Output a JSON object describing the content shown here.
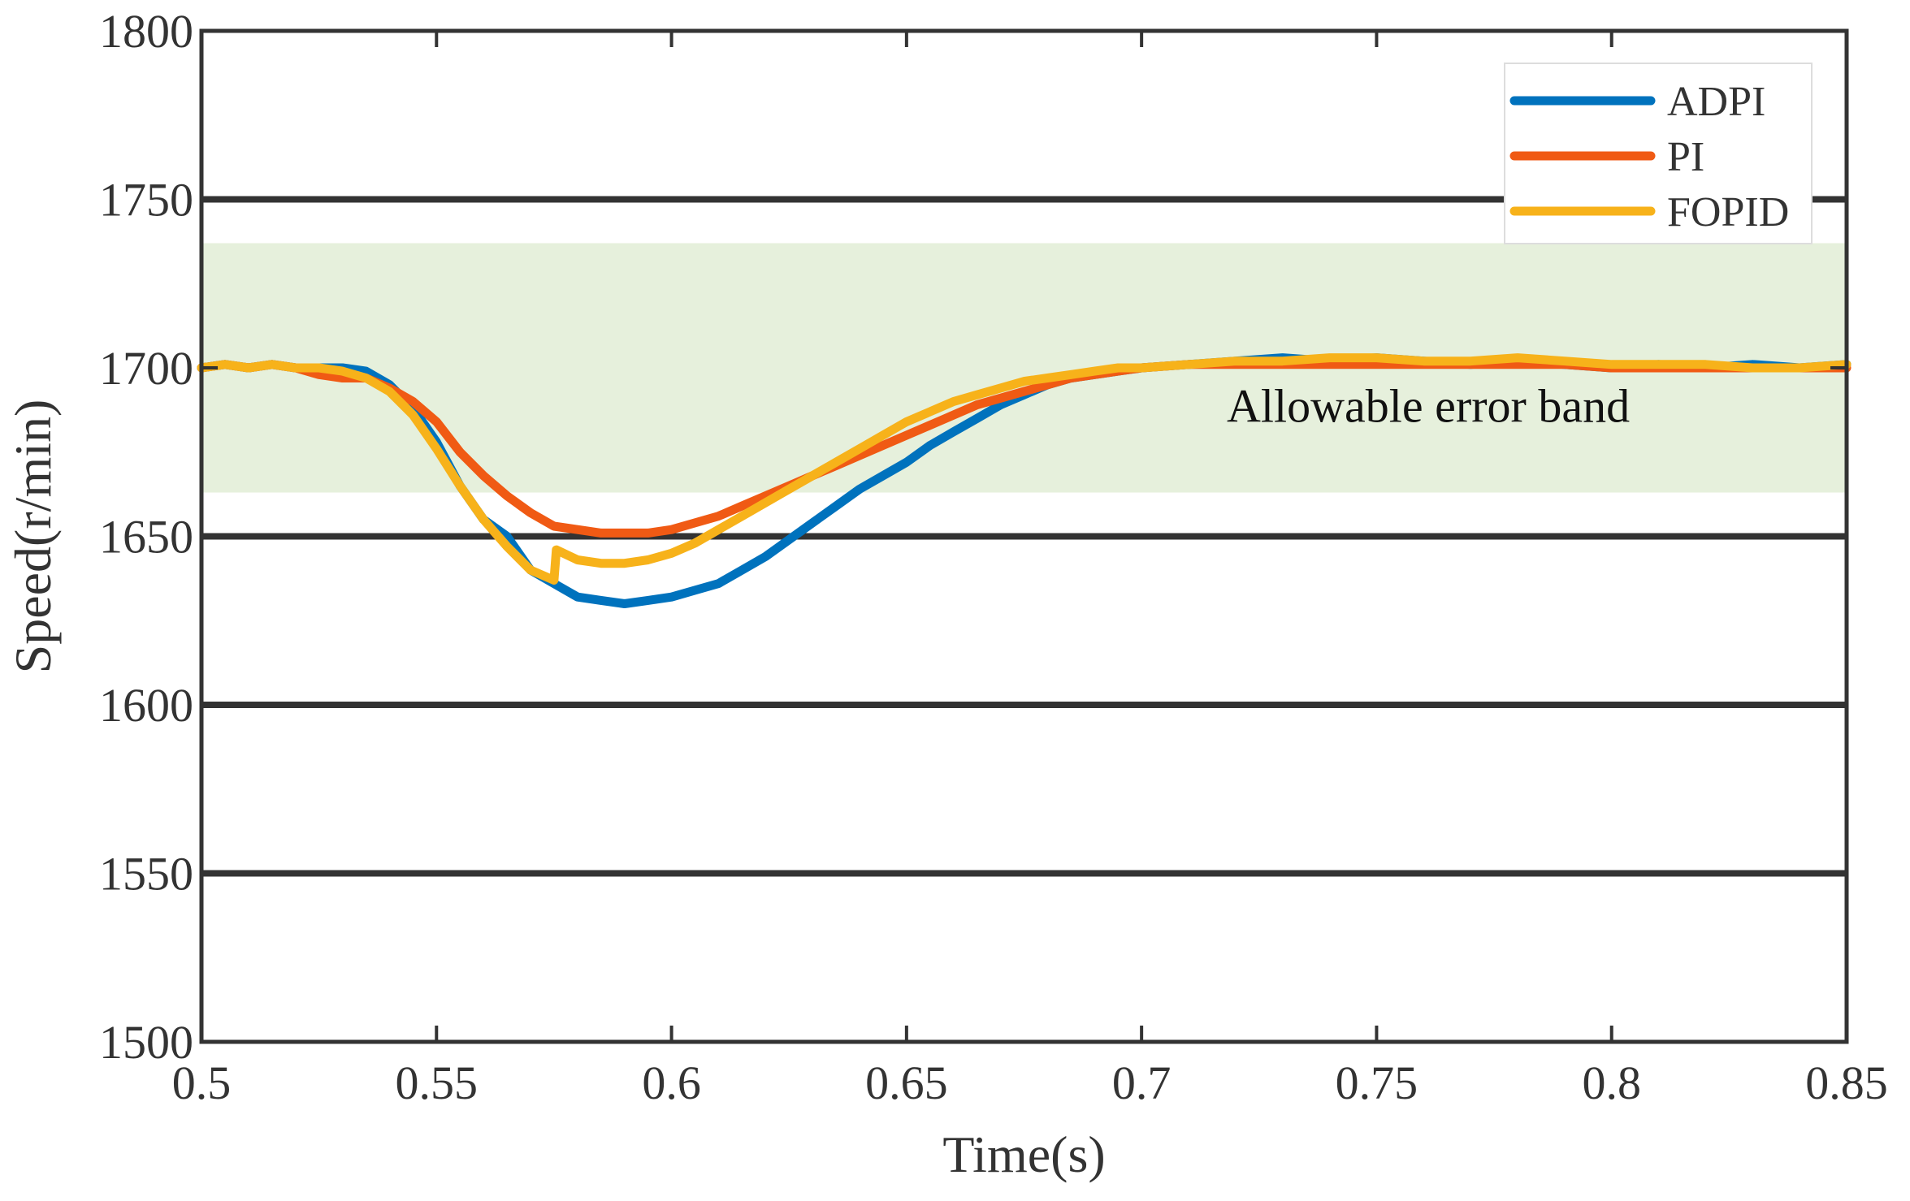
{
  "chart_data": {
    "type": "line",
    "title": "",
    "xlabel": "Time(s)",
    "ylabel": "Speed(r/min)",
    "xlim": [
      0.5,
      0.85
    ],
    "ylim": [
      1500,
      1800
    ],
    "xticks": [
      0.5,
      0.55,
      0.6,
      0.65,
      0.7,
      0.75,
      0.8,
      0.85
    ],
    "xtick_labels": [
      "0.5",
      "0.55",
      "0.6",
      "0.65",
      "0.7",
      "0.75",
      "0.8",
      "0.85"
    ],
    "yticks": [
      1500,
      1550,
      1600,
      1650,
      1700,
      1750,
      1800
    ],
    "ytick_labels": [
      "1500",
      "1550",
      "1600",
      "1650",
      "1700",
      "1750",
      "1800"
    ],
    "gridlines_y": [
      1550,
      1600,
      1650,
      1750
    ],
    "band": {
      "y_low": 1663,
      "y_high": 1737,
      "label": "Allowable error band",
      "color": "#e6f0dc"
    },
    "legend_position": "top-right",
    "series": [
      {
        "name": "ADPI",
        "color": "#0072bd",
        "x": [
          0.5,
          0.505,
          0.51,
          0.515,
          0.52,
          0.525,
          0.53,
          0.535,
          0.54,
          0.545,
          0.55,
          0.555,
          0.56,
          0.565,
          0.57,
          0.575,
          0.58,
          0.585,
          0.59,
          0.595,
          0.6,
          0.605,
          0.61,
          0.615,
          0.62,
          0.625,
          0.63,
          0.635,
          0.64,
          0.645,
          0.65,
          0.655,
          0.66,
          0.665,
          0.67,
          0.675,
          0.68,
          0.685,
          0.69,
          0.695,
          0.7,
          0.71,
          0.72,
          0.73,
          0.74,
          0.75,
          0.76,
          0.77,
          0.78,
          0.79,
          0.8,
          0.81,
          0.82,
          0.83,
          0.84,
          0.85
        ],
        "y": [
          1700,
          1701,
          1700,
          1701,
          1700,
          1700,
          1700,
          1699,
          1695,
          1688,
          1678,
          1665,
          1655,
          1650,
          1640,
          1636,
          1632,
          1631,
          1630,
          1631,
          1632,
          1634,
          1636,
          1640,
          1644,
          1649,
          1654,
          1659,
          1664,
          1668,
          1672,
          1677,
          1681,
          1685,
          1689,
          1692,
          1695,
          1697,
          1698,
          1699,
          1700,
          1701,
          1702,
          1703,
          1702,
          1703,
          1702,
          1701,
          1702,
          1701,
          1700,
          1701,
          1700,
          1701,
          1700,
          1701
        ]
      },
      {
        "name": "PI",
        "color": "#f05a14",
        "x": [
          0.5,
          0.505,
          0.51,
          0.515,
          0.52,
          0.525,
          0.53,
          0.535,
          0.54,
          0.545,
          0.55,
          0.555,
          0.56,
          0.565,
          0.57,
          0.575,
          0.58,
          0.585,
          0.59,
          0.595,
          0.6,
          0.605,
          0.61,
          0.615,
          0.62,
          0.625,
          0.63,
          0.635,
          0.64,
          0.645,
          0.65,
          0.655,
          0.66,
          0.665,
          0.67,
          0.675,
          0.68,
          0.685,
          0.69,
          0.695,
          0.7,
          0.71,
          0.72,
          0.73,
          0.74,
          0.75,
          0.76,
          0.77,
          0.78,
          0.79,
          0.8,
          0.81,
          0.82,
          0.83,
          0.84,
          0.85
        ],
        "y": [
          1700,
          1701,
          1700,
          1701,
          1700,
          1698,
          1697,
          1697,
          1694,
          1690,
          1684,
          1675,
          1668,
          1662,
          1657,
          1653,
          1652,
          1651,
          1651,
          1651,
          1652,
          1654,
          1656,
          1659,
          1662,
          1665,
          1668,
          1671,
          1674,
          1677,
          1680,
          1683,
          1686,
          1689,
          1691,
          1693,
          1695,
          1697,
          1698,
          1699,
          1700,
          1701,
          1701,
          1701,
          1701,
          1701,
          1701,
          1701,
          1701,
          1701,
          1700,
          1700,
          1700,
          1700,
          1700,
          1700
        ]
      },
      {
        "name": "FOPID",
        "color": "#f7b21a",
        "x": [
          0.5,
          0.505,
          0.51,
          0.515,
          0.52,
          0.525,
          0.53,
          0.535,
          0.54,
          0.545,
          0.55,
          0.555,
          0.56,
          0.565,
          0.57,
          0.575,
          0.5755,
          0.58,
          0.585,
          0.59,
          0.595,
          0.6,
          0.605,
          0.61,
          0.615,
          0.62,
          0.625,
          0.63,
          0.635,
          0.64,
          0.645,
          0.65,
          0.655,
          0.66,
          0.665,
          0.67,
          0.675,
          0.68,
          0.685,
          0.69,
          0.695,
          0.7,
          0.71,
          0.72,
          0.73,
          0.74,
          0.75,
          0.76,
          0.77,
          0.78,
          0.79,
          0.8,
          0.81,
          0.82,
          0.83,
          0.84,
          0.85
        ],
        "y": [
          1700,
          1701,
          1700,
          1701,
          1700,
          1700,
          1699,
          1697,
          1693,
          1686,
          1676,
          1665,
          1655,
          1647,
          1640,
          1637,
          1646,
          1643,
          1642,
          1642,
          1643,
          1645,
          1648,
          1652,
          1656,
          1660,
          1664,
          1668,
          1672,
          1676,
          1680,
          1684,
          1687,
          1690,
          1692,
          1694,
          1696,
          1697,
          1698,
          1699,
          1700,
          1700,
          1701,
          1702,
          1702,
          1703,
          1703,
          1702,
          1702,
          1703,
          1702,
          1701,
          1701,
          1701,
          1700,
          1700,
          1701
        ]
      }
    ]
  }
}
